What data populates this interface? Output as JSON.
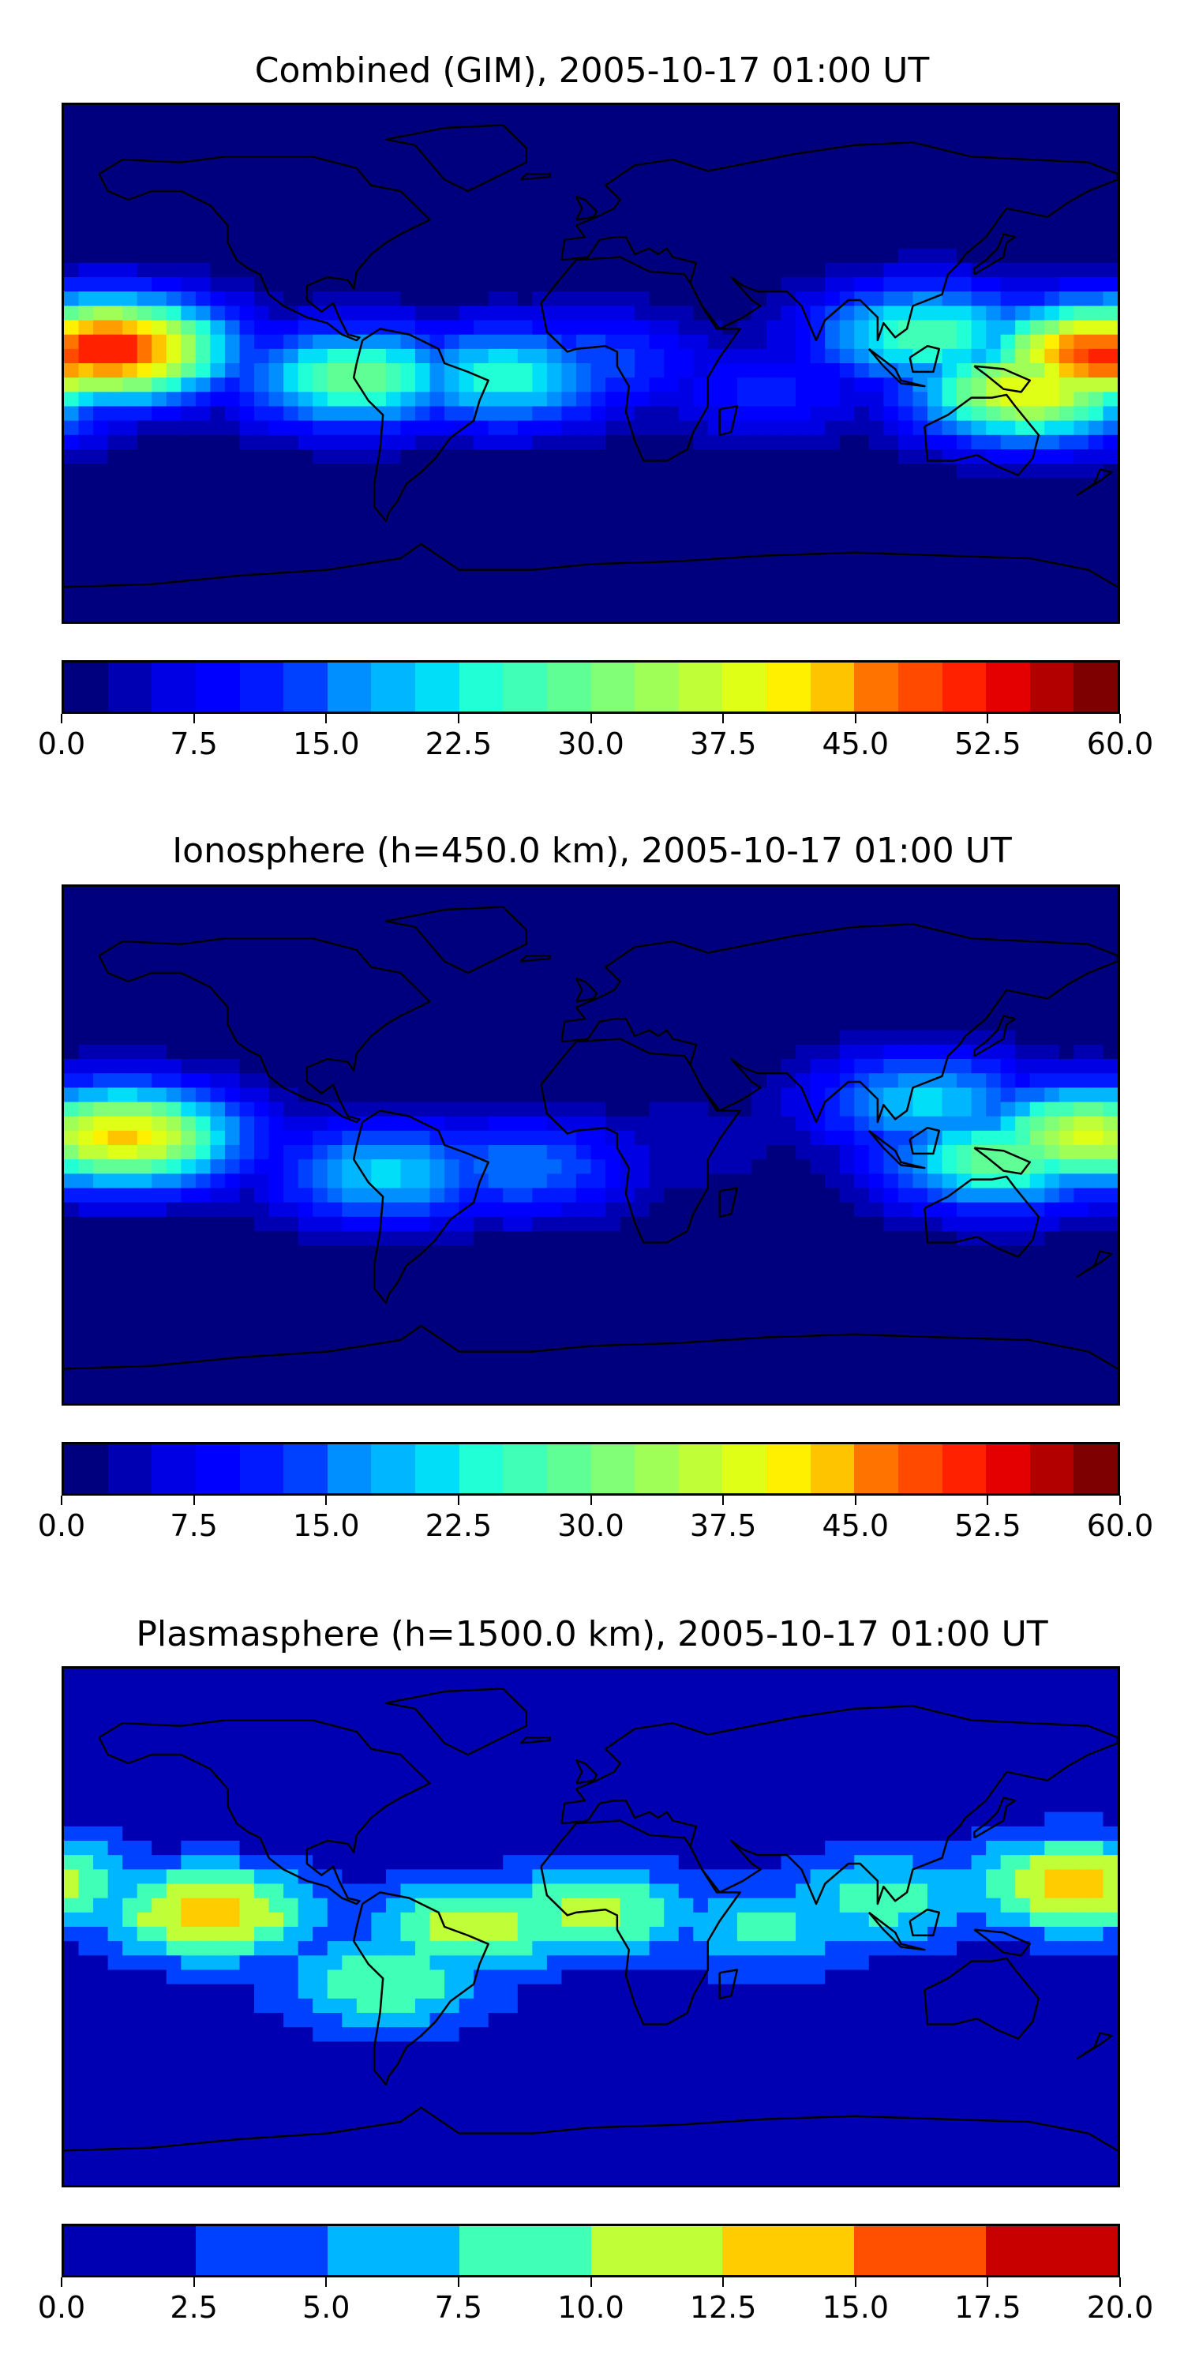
{
  "panels": [
    {
      "id": "combined",
      "title": "Combined (GIM), 2005-10-17 01:00 UT",
      "colorbar": {
        "min": 0.0,
        "max": 60.0,
        "levels": 24,
        "ticks": [
          "0.0",
          "7.5",
          "15.0",
          "22.5",
          "30.0",
          "37.5",
          "45.0",
          "52.5",
          "60.0"
        ],
        "colors": [
          "#00007f",
          "#0000b2",
          "#0000e5",
          "#0000ff",
          "#0019ff",
          "#0040ff",
          "#0068ff",
          "#008fff",
          "#00b7ff",
          "#00dff7",
          "#21ffd6",
          "#40ffb6",
          "#60ff96",
          "#80ff77",
          "#a0ff57",
          "#c0ff37",
          "#e0ff17",
          "#fff000",
          "#ffc400",
          "#ff9c00",
          "#ff7300",
          "#ff4a00",
          "#ff2100",
          "#e50000",
          "#b20000",
          "#7f0000"
        ]
      },
      "field_peaks": [
        {
          "lon": -165,
          "lat": 5,
          "value": 54
        },
        {
          "lon": 175,
          "lat": 3,
          "value": 52
        },
        {
          "lon": 150,
          "lat": -10,
          "value": 40
        },
        {
          "lon": -80,
          "lat": -5,
          "value": 30
        },
        {
          "lon": -30,
          "lat": -5,
          "value": 25
        },
        {
          "lon": 115,
          "lat": 10,
          "value": 28
        },
        {
          "lon": 0,
          "lat": 0,
          "value": 14
        },
        {
          "lon": 60,
          "lat": -10,
          "value": 10
        }
      ]
    },
    {
      "id": "ionosphere",
      "title": "Ionosphere  (h=450.0 km), 2005-10-17 01:00 UT",
      "colorbar": {
        "min": 0.0,
        "max": 60.0,
        "levels": 24,
        "ticks": [
          "0.0",
          "7.5",
          "15.0",
          "22.5",
          "30.0",
          "37.5",
          "45.0",
          "52.5",
          "60.0"
        ],
        "colors": [
          "#00007f",
          "#0000b2",
          "#0000e5",
          "#0000ff",
          "#0019ff",
          "#0040ff",
          "#0068ff",
          "#008fff",
          "#00b7ff",
          "#00dff7",
          "#21ffd6",
          "#40ffb6",
          "#60ff96",
          "#80ff77",
          "#a0ff57",
          "#c0ff37",
          "#e0ff17",
          "#fff000",
          "#ffc400",
          "#ff9c00",
          "#ff7300",
          "#ff4a00",
          "#ff2100",
          "#e50000",
          "#b20000",
          "#7f0000"
        ]
      },
      "field_peaks": [
        {
          "lon": -160,
          "lat": 3,
          "value": 42
        },
        {
          "lon": 170,
          "lat": 3,
          "value": 38
        },
        {
          "lon": 140,
          "lat": -5,
          "value": 30
        },
        {
          "lon": -70,
          "lat": -10,
          "value": 22
        },
        {
          "lon": -25,
          "lat": -8,
          "value": 16
        },
        {
          "lon": 115,
          "lat": 15,
          "value": 22
        },
        {
          "lon": 30,
          "lat": 0,
          "value": 4
        }
      ]
    },
    {
      "id": "plasmasphere",
      "title": "Plasmasphere (h=1500.0 km), 2005-10-17 01:00 UT",
      "colorbar": {
        "min": 0.0,
        "max": 20.0,
        "levels": 8,
        "ticks": [
          "0.0",
          "2.5",
          "5.0",
          "7.5",
          "10.0",
          "12.5",
          "15.0",
          "17.5",
          "20.0"
        ],
        "colors": [
          "#0000b2",
          "#0040ff",
          "#00b7ff",
          "#40ffb6",
          "#c0ff37",
          "#ffcc00",
          "#ff5000",
          "#c80000"
        ]
      },
      "field_peaks": [
        {
          "lon": -130,
          "lat": 5,
          "value": 14
        },
        {
          "lon": 165,
          "lat": 15,
          "value": 14
        },
        {
          "lon": -40,
          "lat": 0,
          "value": 11.5
        },
        {
          "lon": 0,
          "lat": 5,
          "value": 11
        },
        {
          "lon": -70,
          "lat": -20,
          "value": 10
        },
        {
          "lon": 100,
          "lat": 10,
          "value": 9
        },
        {
          "lon": 60,
          "lat": 0,
          "value": 8
        }
      ]
    }
  ]
}
